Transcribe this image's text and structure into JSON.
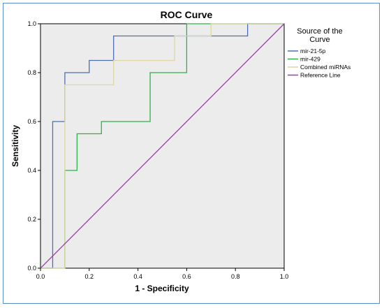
{
  "chart_data": {
    "type": "line",
    "title": "ROC Curve",
    "xlabel": "1 - Specificity",
    "ylabel": "Sensitivity",
    "xlim": [
      0.0,
      1.0
    ],
    "ylim": [
      0.0,
      1.0
    ],
    "x_ticks": [
      "0.0",
      "0.2",
      "0.4",
      "0.6",
      "0.8",
      "1.0"
    ],
    "y_ticks": [
      "0.0",
      "0.2",
      "0.4",
      "0.6",
      "0.8",
      "1.0"
    ],
    "grid": false,
    "legend_title": "Source of the Curve",
    "legend_position": "right",
    "series": [
      {
        "name": "mir-21-5p",
        "color": "#4a6fb5",
        "points": [
          [
            0,
            0
          ],
          [
            0.05,
            0
          ],
          [
            0.05,
            0.6
          ],
          [
            0.1,
            0.6
          ],
          [
            0.1,
            0.8
          ],
          [
            0.2,
            0.8
          ],
          [
            0.2,
            0.85
          ],
          [
            0.3,
            0.85
          ],
          [
            0.3,
            0.95
          ],
          [
            0.7,
            0.95
          ],
          [
            0.85,
            0.95
          ],
          [
            0.85,
            1.0
          ],
          [
            1.0,
            1.0
          ]
        ]
      },
      {
        "name": "mir-429",
        "color": "#2db34a",
        "points": [
          [
            0,
            0
          ],
          [
            0.1,
            0
          ],
          [
            0.1,
            0.4
          ],
          [
            0.15,
            0.4
          ],
          [
            0.15,
            0.55
          ],
          [
            0.25,
            0.55
          ],
          [
            0.25,
            0.6
          ],
          [
            0.45,
            0.6
          ],
          [
            0.45,
            0.8
          ],
          [
            0.6,
            0.8
          ],
          [
            0.6,
            1.0
          ],
          [
            1.0,
            1.0
          ]
        ]
      },
      {
        "name": "Combined miRNAs",
        "color": "#dcd6a4",
        "points": [
          [
            0,
            0
          ],
          [
            0.1,
            0
          ],
          [
            0.1,
            0.75
          ],
          [
            0.3,
            0.75
          ],
          [
            0.3,
            0.85
          ],
          [
            0.55,
            0.85
          ],
          [
            0.55,
            0.95
          ],
          [
            0.7,
            0.95
          ],
          [
            0.7,
            1.0
          ],
          [
            1.0,
            1.0
          ]
        ]
      },
      {
        "name": "Reference Line",
        "color": "#9b3fa8",
        "points": [
          [
            0,
            0
          ],
          [
            1,
            1
          ]
        ]
      }
    ]
  }
}
